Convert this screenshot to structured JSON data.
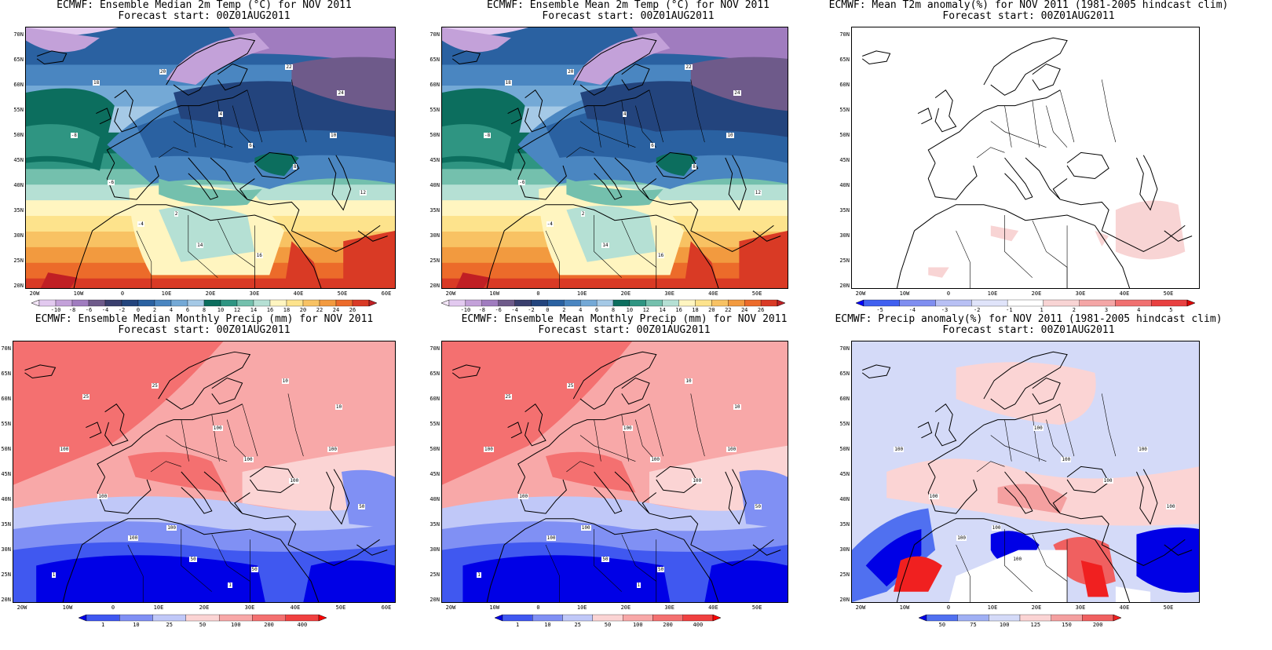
{
  "panels": [
    {
      "id": "p1",
      "title1": "ECMWF: Ensemble Median 2m Temp (°C) for NOV 2011",
      "title2": "Forecast start: 00Z01AUG2011",
      "kind": "temp",
      "yticks": [
        "70N",
        "65N",
        "60N",
        "55N",
        "50N",
        "45N",
        "40N",
        "35N",
        "30N",
        "25N",
        "20N"
      ],
      "xticks": [
        "20W",
        "10W",
        "0",
        "10E",
        "20E",
        "30E",
        "40E",
        "50E",
        "60E"
      ],
      "colorbar_labels": [
        "-10",
        "-8",
        "-6",
        "-4",
        "-2",
        "0",
        "2",
        "4",
        "6",
        "8",
        "10",
        "12",
        "14",
        "16",
        "18",
        "20",
        "22",
        "24",
        "26"
      ],
      "contour_labels": [
        "-8",
        "-6",
        "-4",
        "2",
        "4",
        "6",
        "8",
        "10",
        "12",
        "14",
        "16",
        "18",
        "20",
        "22",
        "24"
      ]
    },
    {
      "id": "p2",
      "title1": "ECMWF: Ensemble Mean 2m Temp (°C) for NOV 2011",
      "title2": "Forecast start: 00Z01AUG2011",
      "kind": "temp",
      "yticks": [
        "70N",
        "65N",
        "60N",
        "55N",
        "50N",
        "45N",
        "40N",
        "35N",
        "30N",
        "25N",
        "20N"
      ],
      "xticks": [
        "20W",
        "10W",
        "0",
        "10E",
        "20E",
        "30E",
        "40E",
        "50E"
      ],
      "colorbar_labels": [
        "-10",
        "-8",
        "-6",
        "-4",
        "-2",
        "0",
        "2",
        "4",
        "6",
        "8",
        "10",
        "12",
        "14",
        "16",
        "18",
        "20",
        "22",
        "24",
        "26"
      ],
      "contour_labels": [
        "-8",
        "-6",
        "-4",
        "2",
        "4",
        "6",
        "8",
        "10",
        "12",
        "14",
        "16",
        "18",
        "20",
        "22",
        "24"
      ]
    },
    {
      "id": "p3",
      "title1": "ECMWF: Mean T2m anomaly(%) for NOV 2011 (1981-2005 hindcast clim)",
      "title2": "Forecast start: 00Z01AUG2011",
      "kind": "tanom",
      "yticks": [
        "70N",
        "65N",
        "60N",
        "55N",
        "50N",
        "45N",
        "40N",
        "35N",
        "30N",
        "25N",
        "20N"
      ],
      "xticks": [
        "20W",
        "10W",
        "0",
        "10E",
        "20E",
        "30E",
        "40E",
        "50E"
      ],
      "colorbar_labels": [
        "-5",
        "-4",
        "-3",
        "-2",
        "-1",
        "1",
        "2",
        "3",
        "4",
        "5"
      ],
      "contour_labels": []
    },
    {
      "id": "p4",
      "title1": "ECMWF: Ensemble Median Monthly Precip (mm) for NOV 2011",
      "title2": "Forecast start: 00Z01AUG2011",
      "kind": "precip",
      "yticks": [
        "70N",
        "65N",
        "60N",
        "55N",
        "50N",
        "45N",
        "40N",
        "35N",
        "30N",
        "25N",
        "20N"
      ],
      "xticks": [
        "20W",
        "10W",
        "0",
        "10E",
        "20E",
        "30E",
        "40E",
        "50E",
        "60E"
      ],
      "colorbar_labels": [
        "1",
        "10",
        "25",
        "50",
        "100",
        "200",
        "400"
      ],
      "contour_labels": [
        "100",
        "100",
        "100",
        "100",
        "100",
        "100",
        "100",
        "100",
        "50",
        "50",
        "50",
        "25",
        "25",
        "10",
        "10",
        "1",
        "1"
      ]
    },
    {
      "id": "p5",
      "title1": "ECMWF: Ensemble Mean Monthly Precip (mm) for NOV 2011",
      "title2": "Forecast start: 00Z01AUG2011",
      "kind": "precip",
      "yticks": [
        "70N",
        "65N",
        "60N",
        "55N",
        "50N",
        "45N",
        "40N",
        "35N",
        "30N",
        "25N",
        "20N"
      ],
      "xticks": [
        "20W",
        "10W",
        "0",
        "10E",
        "20E",
        "30E",
        "40E",
        "50E"
      ],
      "colorbar_labels": [
        "1",
        "10",
        "25",
        "50",
        "100",
        "200",
        "400"
      ],
      "contour_labels": [
        "100",
        "100",
        "100",
        "100",
        "100",
        "100",
        "100",
        "100",
        "50",
        "50",
        "50",
        "25",
        "25",
        "10",
        "10",
        "1",
        "1"
      ]
    },
    {
      "id": "p6",
      "title1": "ECMWF: Precip anomaly(%) for NOV 2011 (1981-2005 hindcast clim)",
      "title2": "Forecast start: 00Z01AUG2011",
      "kind": "panom",
      "yticks": [
        "70N",
        "65N",
        "60N",
        "55N",
        "50N",
        "45N",
        "40N",
        "35N",
        "30N",
        "25N",
        "20N"
      ],
      "xticks": [
        "20W",
        "10W",
        "0",
        "10E",
        "20E",
        "30E",
        "40E",
        "50E"
      ],
      "colorbar_labels": [
        "50",
        "75",
        "100",
        "125",
        "150",
        "200"
      ],
      "contour_labels": [
        "100",
        "100",
        "100",
        "100",
        "100",
        "100",
        "100",
        "100",
        "100",
        "100"
      ]
    }
  ],
  "colors": {
    "temp": [
      "#f4e6f8",
      "#e2c9ef",
      "#c3a1d9",
      "#a07cbf",
      "#6e5a8a",
      "#3a3f6e",
      "#23447d",
      "#2a61a1",
      "#4a86c1",
      "#74a9d6",
      "#a5c9e6",
      "#0c6e5e",
      "#2f9582",
      "#74c0ad",
      "#b5e0d4",
      "#fff5c0",
      "#fde38c",
      "#f8c263",
      "#f29a3f",
      "#ec6b2a",
      "#d93a25",
      "#c01f24"
    ],
    "tanom": [
      "#0000ff",
      "#4060f0",
      "#7f8ef0",
      "#b8c0f4",
      "#e0e4fa",
      "#ffffff",
      "#f8d4d4",
      "#f4a6a6",
      "#f07070",
      "#e84040",
      "#e00000"
    ],
    "precip": [
      "#0000e6",
      "#4058f0",
      "#8090f4",
      "#c0c8f8",
      "#fbd4d4",
      "#f8a8a8",
      "#f47070",
      "#f04040",
      "#ff0000"
    ],
    "panom": [
      "#0000e6",
      "#5070f0",
      "#a0b0f4",
      "#d4daf8",
      "#fbd4d4",
      "#f4a0a0",
      "#f06060",
      "#f02020"
    ]
  }
}
